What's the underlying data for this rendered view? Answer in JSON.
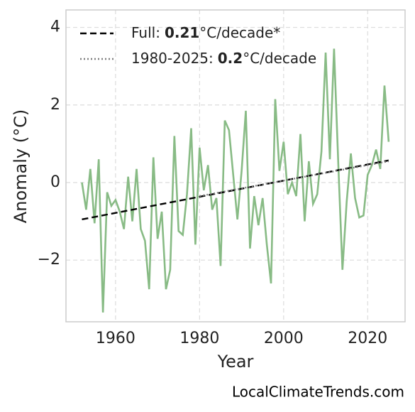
{
  "chart_data": {
    "type": "line",
    "xlabel": "Year",
    "ylabel": "Anomaly (°C)",
    "source": "LocalClimateTrends.com",
    "x": [
      1952,
      1953,
      1954,
      1955,
      1956,
      1957,
      1958,
      1959,
      1960,
      1961,
      1962,
      1963,
      1964,
      1965,
      1966,
      1967,
      1968,
      1969,
      1970,
      1971,
      1972,
      1973,
      1974,
      1975,
      1976,
      1977,
      1978,
      1979,
      1980,
      1981,
      1982,
      1983,
      1984,
      1985,
      1986,
      1987,
      1988,
      1989,
      1990,
      1991,
      1992,
      1993,
      1994,
      1995,
      1996,
      1997,
      1998,
      1999,
      2000,
      2001,
      2002,
      2003,
      2004,
      2005,
      2006,
      2007,
      2008,
      2009,
      2010,
      2011,
      2012,
      2013,
      2014,
      2015,
      2016,
      2017,
      2018,
      2019,
      2020,
      2021,
      2022,
      2023,
      2024,
      2025
    ],
    "series": [
      {
        "color": "#88bb85",
        "values": [
          0.0,
          -0.7,
          0.35,
          -1.05,
          0.6,
          -3.35,
          -0.25,
          -0.6,
          -0.45,
          -0.75,
          -1.2,
          0.15,
          -1.0,
          0.35,
          -1.2,
          -1.5,
          -2.75,
          0.65,
          -1.45,
          -0.75,
          -2.75,
          -2.25,
          1.2,
          -1.25,
          -1.35,
          -0.3,
          1.4,
          -1.6,
          0.9,
          -0.2,
          0.45,
          -0.7,
          -0.4,
          -2.15,
          1.6,
          1.35,
          0.2,
          -0.95,
          0.3,
          1.85,
          -1.7,
          -0.35,
          -1.1,
          -0.4,
          -1.6,
          -2.6,
          2.15,
          0.3,
          1.05,
          -0.3,
          0.0,
          -0.35,
          1.25,
          -1.0,
          0.55,
          -0.55,
          -0.3,
          0.8,
          3.35,
          0.6,
          3.45,
          0.5,
          -2.25,
          -0.5,
          0.75,
          -0.4,
          -0.9,
          -0.85,
          0.2,
          0.45,
          0.85,
          0.35,
          2.5,
          1.05
        ]
      }
    ],
    "trends": [
      {
        "label": "Full:",
        "rate": 0.21,
        "unit": "°C/decade*",
        "color": "#000000",
        "dash": "dashed",
        "x": [
          1952,
          2025
        ],
        "values": [
          -0.95,
          0.57
        ]
      },
      {
        "label": "1980-2025:",
        "rate": 0.2,
        "unit": "°C/decade",
        "color": "#808080",
        "dash": "dotted",
        "x": [
          1980,
          2025
        ],
        "values": [
          -0.35,
          0.55
        ]
      }
    ],
    "xlim": [
      1948.2,
      2028.9
    ],
    "ylim": [
      -3.59,
      4.45
    ],
    "xticks": [
      1960,
      1980,
      2000,
      2020
    ],
    "yticks": [
      {
        "value": -2,
        "label": "−2"
      },
      0,
      2,
      4
    ],
    "grid": true
  }
}
